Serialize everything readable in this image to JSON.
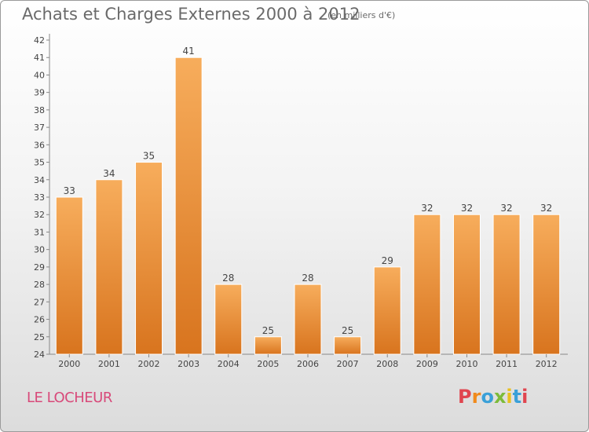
{
  "chart_data": {
    "type": "bar",
    "title": "Achats et Charges Externes 2000 à 2012",
    "subtitle": "(en milliers d'€)",
    "categories": [
      "2000",
      "2001",
      "2002",
      "2003",
      "2004",
      "2005",
      "2006",
      "2007",
      "2008",
      "2009",
      "2010",
      "2011",
      "2012"
    ],
    "values": [
      33,
      34,
      35,
      41,
      28,
      25,
      28,
      25,
      29,
      32,
      32,
      32,
      32
    ],
    "ylim": [
      24,
      42
    ],
    "yticks": [
      24,
      25,
      26,
      27,
      28,
      29,
      30,
      31,
      32,
      33,
      34,
      35,
      36,
      37,
      38,
      39,
      40,
      41,
      42
    ],
    "grid": false,
    "bar_color": "#f39a3c",
    "bar_color_light": "#f7ad5c",
    "bar_color_dark": "#d8741e"
  },
  "place_name": "LE LOCHEUR",
  "logo": {
    "letters": [
      "P",
      "r",
      "o",
      "x",
      "i",
      "t",
      "i"
    ]
  }
}
